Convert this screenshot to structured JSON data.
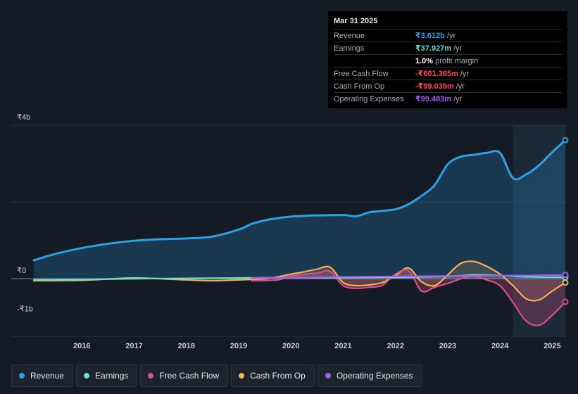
{
  "tooltip": {
    "date": "Mar 31 2025",
    "rows": [
      {
        "name": "Revenue",
        "value": "₹3.612b",
        "unit": "/yr",
        "color": "#2f9fe6"
      },
      {
        "name": "Earnings",
        "value": "₹37.927m",
        "unit": "/yr",
        "color": "#5fe0d0"
      },
      {
        "name": "",
        "value": "1.0%",
        "unit": "profit margin",
        "color": "#ffffff"
      },
      {
        "name": "Free Cash Flow",
        "value": "-₹601.365m",
        "unit": "/yr",
        "color": "#ff4a5e"
      },
      {
        "name": "Cash From Op",
        "value": "-₹99.039m",
        "unit": "/yr",
        "color": "#ff4a5e"
      },
      {
        "name": "Operating Expenses",
        "value": "₹99.483m",
        "unit": "/yr",
        "color": "#a25cf0"
      }
    ]
  },
  "legend": [
    {
      "label": "Revenue",
      "color": "#2f9fe6"
    },
    {
      "label": "Earnings",
      "color": "#5fe0d0"
    },
    {
      "label": "Free Cash Flow",
      "color": "#d94f8a"
    },
    {
      "label": "Cash From Op",
      "color": "#f0b25a"
    },
    {
      "label": "Operating Expenses",
      "color": "#a25cf0"
    }
  ],
  "chart_data": {
    "type": "area",
    "title": "",
    "xlabel": "",
    "ylabel": "",
    "y_tick_labels": [
      "₹4b",
      "₹0",
      "-₹1b"
    ],
    "y_ticks": [
      4,
      0,
      -1
    ],
    "ylim": [
      -1.5,
      4.0
    ],
    "xlim": [
      2015.08,
      2025.25
    ],
    "x_tick_labels": [
      "2016",
      "2017",
      "2018",
      "2019",
      "2020",
      "2021",
      "2022",
      "2023",
      "2024",
      "2025"
    ],
    "x_ticks": [
      2016,
      2017,
      2018,
      2019,
      2020,
      2021,
      2022,
      2023,
      2024,
      2025
    ],
    "highlight_start": 2024.25,
    "series": [
      {
        "name": "Revenue",
        "color": "#2f9fe6",
        "x": [
          2015.08,
          2015.5,
          2016.0,
          2016.5,
          2017.0,
          2017.5,
          2018.0,
          2018.5,
          2019.0,
          2019.25,
          2019.5,
          2019.75,
          2020.0,
          2020.5,
          2021.0,
          2021.25,
          2021.5,
          2021.75,
          2022.0,
          2022.25,
          2022.5,
          2022.75,
          2023.0,
          2023.25,
          2023.5,
          2023.75,
          2024.0,
          2024.25,
          2024.5,
          2024.75,
          2025.0,
          2025.25
        ],
        "values": [
          0.48,
          0.65,
          0.8,
          0.91,
          0.99,
          1.03,
          1.05,
          1.1,
          1.28,
          1.43,
          1.52,
          1.58,
          1.62,
          1.65,
          1.66,
          1.63,
          1.73,
          1.77,
          1.81,
          1.94,
          2.16,
          2.44,
          2.98,
          3.18,
          3.23,
          3.28,
          3.28,
          2.62,
          2.72,
          2.96,
          3.3,
          3.612
        ]
      },
      {
        "name": "Earnings",
        "color": "#5fe0d0",
        "x": [
          2015.08,
          2016.0,
          2017.0,
          2018.0,
          2019.0,
          2020.0,
          2021.0,
          2022.0,
          2023.0,
          2023.5,
          2024.0,
          2024.5,
          2025.0,
          2025.25
        ],
        "values": [
          -0.03,
          -0.02,
          0.0,
          0.01,
          0.02,
          0.03,
          0.03,
          0.04,
          0.06,
          0.1,
          0.08,
          0.05,
          0.04,
          0.038
        ]
      },
      {
        "name": "Free Cash Flow",
        "color": "#d94f8a",
        "x": [
          2019.25,
          2019.75,
          2020.0,
          2020.5,
          2020.75,
          2021.0,
          2021.25,
          2021.5,
          2021.75,
          2022.0,
          2022.25,
          2022.5,
          2022.75,
          2023.0,
          2023.25,
          2023.5,
          2023.75,
          2024.0,
          2024.25,
          2024.5,
          2024.75,
          2025.0,
          2025.25
        ],
        "values": [
          -0.05,
          -0.03,
          0.07,
          0.15,
          0.19,
          -0.18,
          -0.25,
          -0.22,
          -0.17,
          0.12,
          0.21,
          -0.32,
          -0.22,
          -0.12,
          0.0,
          0.07,
          -0.03,
          -0.18,
          -0.62,
          -1.1,
          -1.21,
          -0.95,
          -0.6
        ]
      },
      {
        "name": "Cash From Op",
        "color": "#f0b25a",
        "x": [
          2015.08,
          2016.0,
          2017.0,
          2018.0,
          2018.5,
          2019.0,
          2019.5,
          2019.75,
          2020.0,
          2020.25,
          2020.5,
          2020.75,
          2021.0,
          2021.25,
          2021.5,
          2021.75,
          2022.0,
          2022.25,
          2022.5,
          2022.75,
          2023.0,
          2023.25,
          2023.5,
          2023.75,
          2024.0,
          2024.25,
          2024.5,
          2024.75,
          2025.0,
          2025.25
        ],
        "values": [
          -0.05,
          -0.04,
          0.02,
          -0.03,
          -0.05,
          -0.03,
          0.0,
          0.05,
          0.12,
          0.18,
          0.25,
          0.3,
          -0.1,
          -0.18,
          -0.16,
          -0.1,
          0.08,
          0.28,
          -0.08,
          -0.18,
          0.1,
          0.4,
          0.45,
          0.32,
          0.12,
          -0.18,
          -0.52,
          -0.55,
          -0.32,
          -0.1
        ]
      },
      {
        "name": "Operating Expenses",
        "color": "#a25cf0",
        "x": [
          2019.25,
          2020.0,
          2021.0,
          2022.0,
          2023.0,
          2024.0,
          2024.5,
          2025.0,
          2025.25
        ],
        "values": [
          0.02,
          0.03,
          0.05,
          0.06,
          0.07,
          0.08,
          0.085,
          0.095,
          0.1
        ]
      }
    ]
  }
}
